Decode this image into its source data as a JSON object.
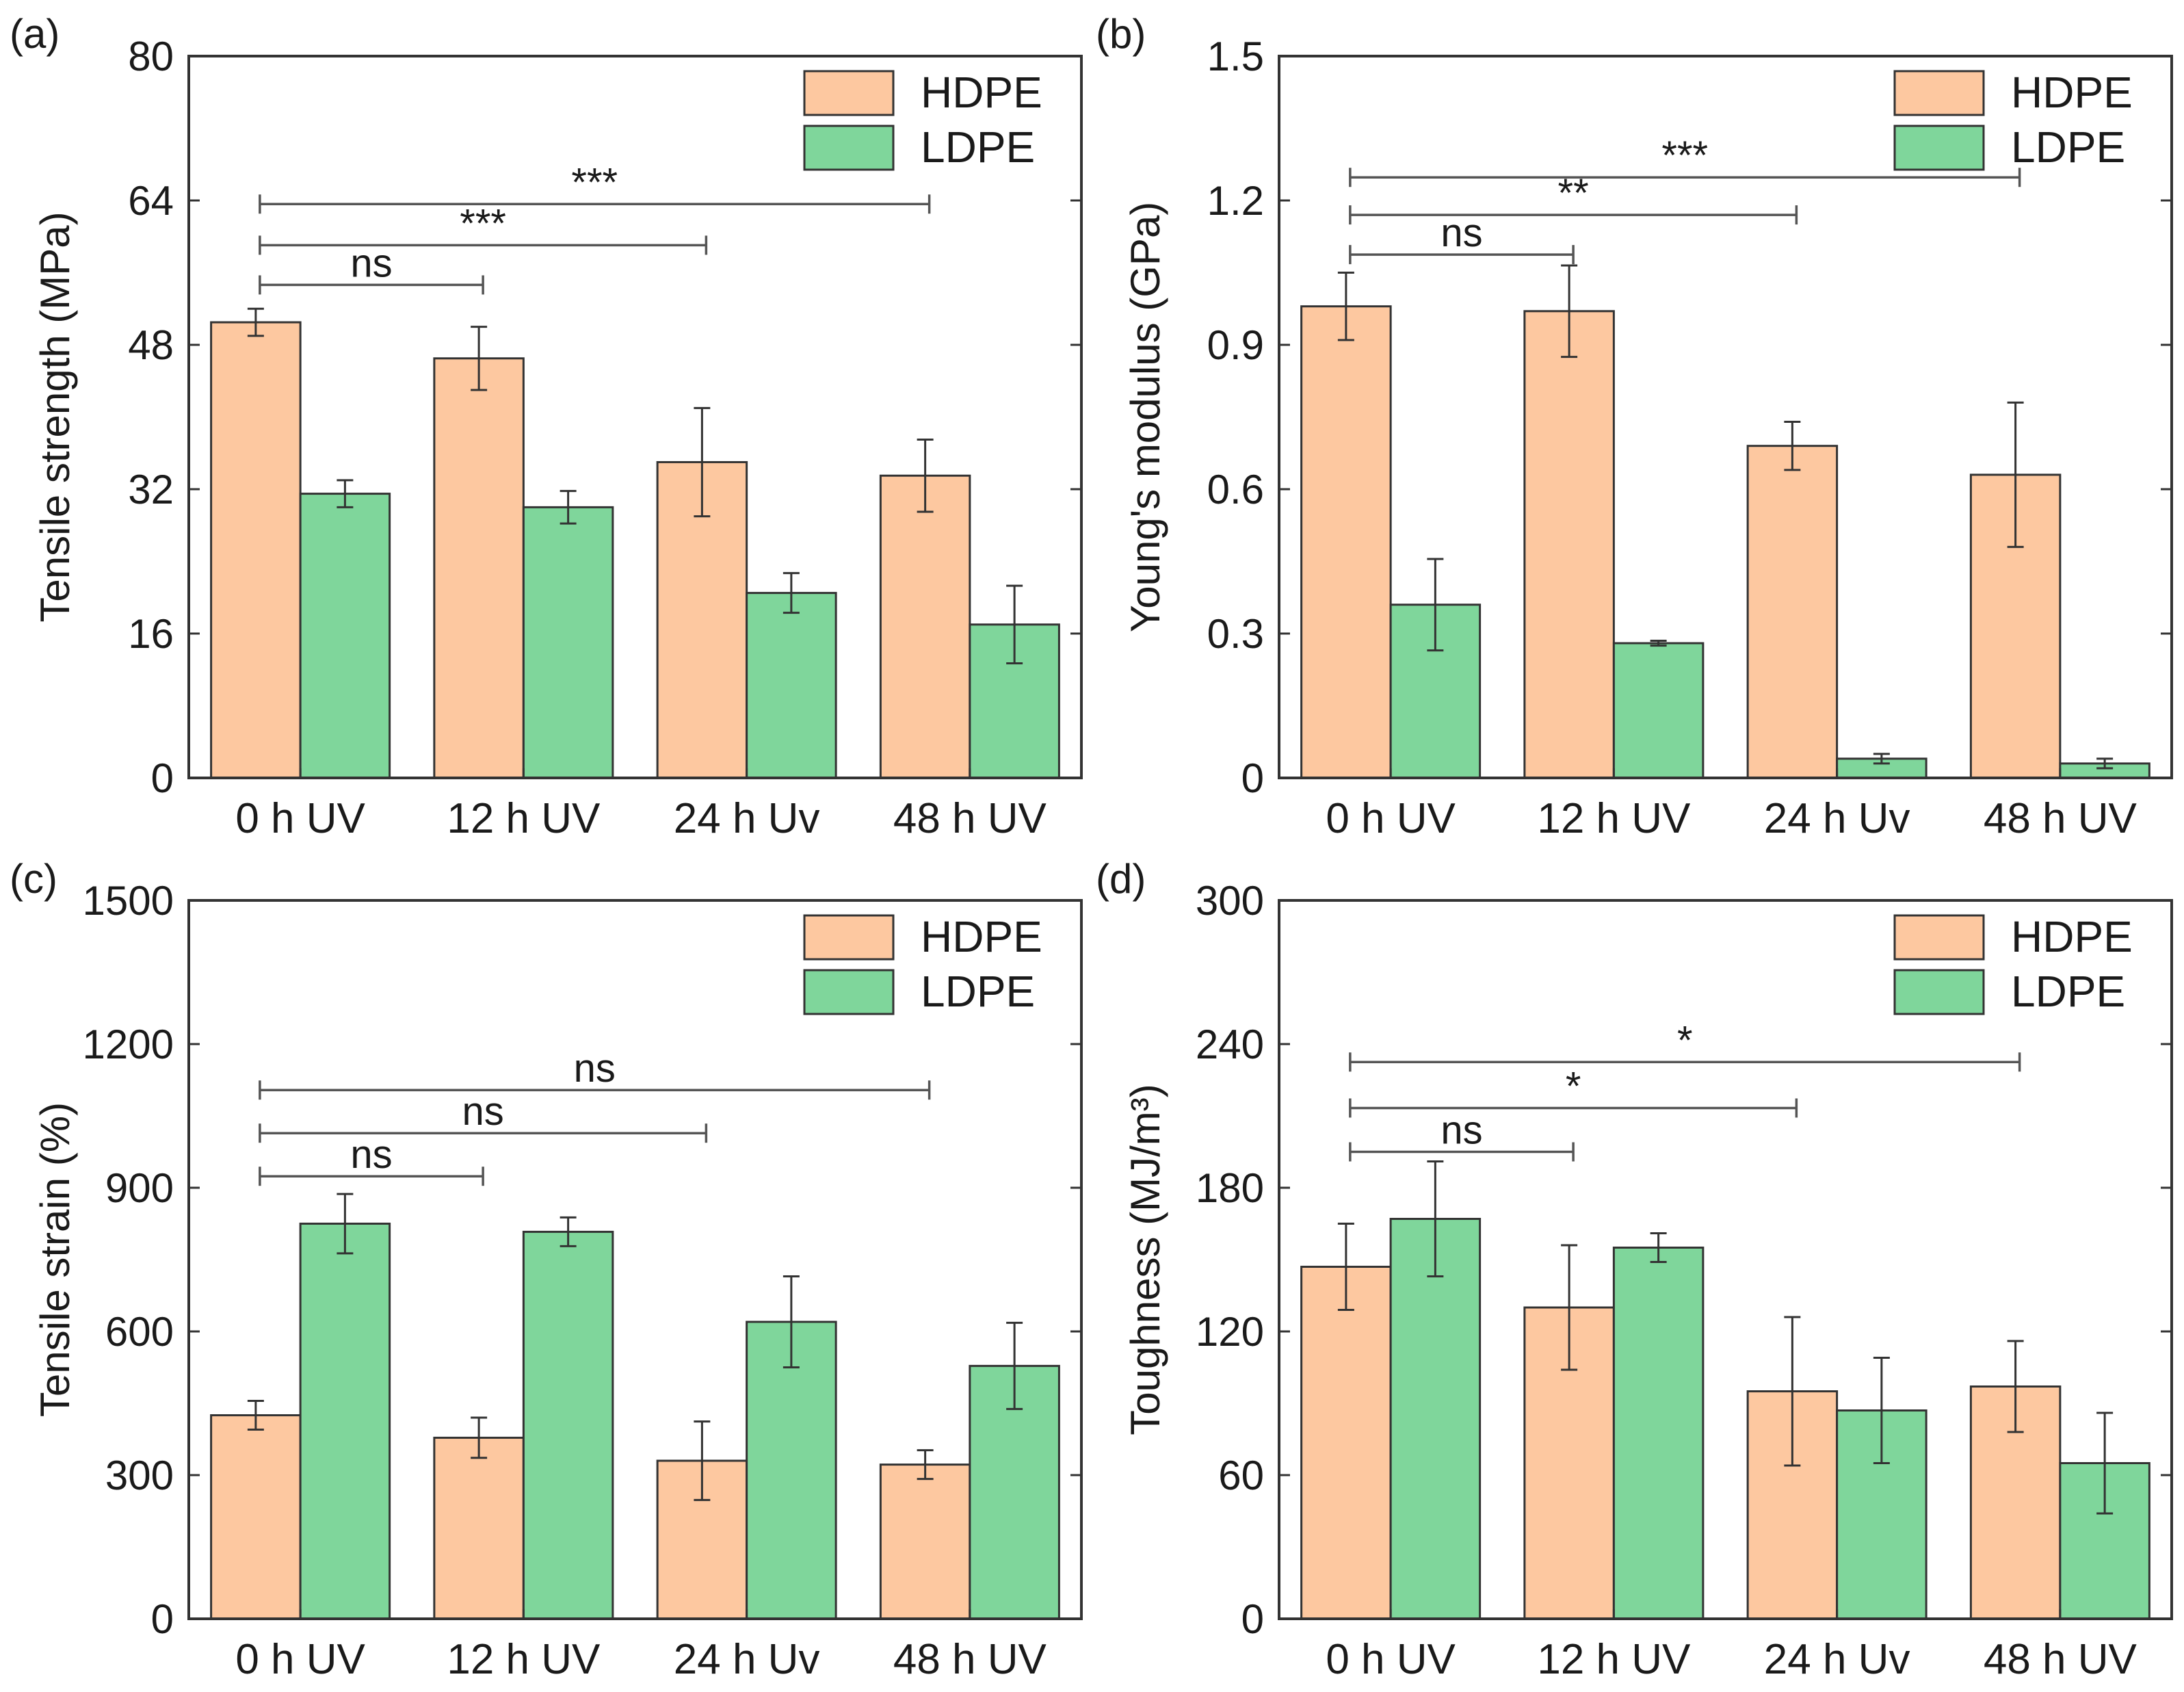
{
  "colors": {
    "hdpe": "#FDC8A0",
    "ldpe": "#7FD69B",
    "frame": "#333333",
    "sig": "#555555"
  },
  "chart_data": [
    {
      "panel": "(a)",
      "type": "bar",
      "categories": [
        "0 h UV",
        "12 h UV",
        "24 h Uv",
        "48 h UV"
      ],
      "ylabel": "Tensile strength (MPa)",
      "ylim": [
        0,
        80
      ],
      "yticks": [
        0,
        16,
        32,
        48,
        64,
        80
      ],
      "legend": "top-right",
      "series": [
        {
          "name": "HDPE",
          "values": [
            50.5,
            46.5,
            35,
            33.5
          ],
          "errors": [
            1.5,
            3.5,
            6,
            4
          ]
        },
        {
          "name": "LDPE",
          "values": [
            31.5,
            30,
            20.5,
            17
          ],
          "errors": [
            1.5,
            1.8,
            2.2,
            4.3
          ]
        }
      ],
      "significance": [
        {
          "label": "ns",
          "from": 0,
          "to": 1
        },
        {
          "label": "***",
          "from": 0,
          "to": 2
        },
        {
          "label": "***",
          "from": 0,
          "to": 3
        }
      ]
    },
    {
      "panel": "(b)",
      "type": "bar",
      "categories": [
        "0 h UV",
        "12 h UV",
        "24 h Uv",
        "48 h UV"
      ],
      "ylabel": "Young's modulus (GPa)",
      "ylim": [
        0,
        1.5
      ],
      "yticks": [
        "0",
        "0.3",
        "0.6",
        "0.9",
        "1.2",
        "1.5"
      ],
      "legend": "top-right",
      "series": [
        {
          "name": "HDPE",
          "values": [
            0.98,
            0.97,
            0.69,
            0.63
          ],
          "errors": [
            0.07,
            0.095,
            0.05,
            0.15
          ]
        },
        {
          "name": "LDPE",
          "values": [
            0.36,
            0.28,
            0.04,
            0.03
          ],
          "errors": [
            0.095,
            0.005,
            0.01,
            0.01
          ]
        }
      ],
      "significance": [
        {
          "label": "ns",
          "from": 0,
          "to": 1
        },
        {
          "label": "**",
          "from": 0,
          "to": 2
        },
        {
          "label": "***",
          "from": 0,
          "to": 3
        }
      ]
    },
    {
      "panel": "(c)",
      "type": "bar",
      "categories": [
        "0 h UV",
        "12 h UV",
        "24 h Uv",
        "48 h UV"
      ],
      "ylabel": "Tensile strain (%)",
      "ylim": [
        0,
        1500
      ],
      "yticks": [
        0,
        300,
        600,
        900,
        1200,
        1500
      ],
      "legend": "top-right",
      "series": [
        {
          "name": "HDPE",
          "values": [
            425,
            378,
            330,
            322
          ],
          "errors": [
            30,
            42,
            82,
            30
          ]
        },
        {
          "name": "LDPE",
          "values": [
            825,
            808,
            620,
            528
          ],
          "errors": [
            62,
            30,
            95,
            90
          ]
        }
      ],
      "significance": [
        {
          "label": "ns",
          "from": 0,
          "to": 1
        },
        {
          "label": "ns",
          "from": 0,
          "to": 2
        },
        {
          "label": "ns",
          "from": 0,
          "to": 3
        }
      ]
    },
    {
      "panel": "(d)",
      "type": "bar",
      "categories": [
        "0 h UV",
        "12 h UV",
        "24 h Uv",
        "48 h UV"
      ],
      "ylabel": "Toughness (MJ/m³)",
      "ylim": [
        0,
        300
      ],
      "yticks": [
        0,
        60,
        120,
        180,
        240,
        300
      ],
      "legend": "top-right",
      "series": [
        {
          "name": "HDPE",
          "values": [
            147,
            130,
            95,
            97
          ],
          "errors": [
            18,
            26,
            31,
            19
          ]
        },
        {
          "name": "LDPE",
          "values": [
            167,
            155,
            87,
            65
          ],
          "errors": [
            24,
            6,
            22,
            21
          ]
        }
      ],
      "significance": [
        {
          "label": "ns",
          "from": 0,
          "to": 1
        },
        {
          "label": "*",
          "from": 0,
          "to": 2
        },
        {
          "label": "*",
          "from": 0,
          "to": 3
        }
      ]
    }
  ]
}
